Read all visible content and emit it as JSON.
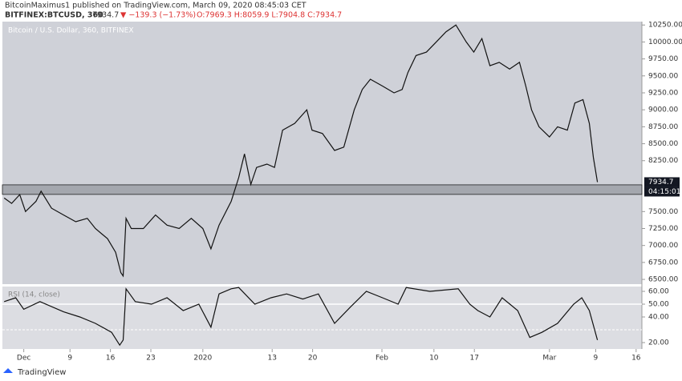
{
  "header": {
    "author_line": "BitcoinMaximus1 published on TradingView.com, March 09, 2020 08:45:03 CET",
    "symbol": "BITFINEX:BTCUSD, 360",
    "last": "7934.7",
    "change": "▼ −139.3 (−1.73%)",
    "ohlc": "O:7969.3 H:8059.9 L:7904.8 C:7934.7",
    "brand": "TradingView"
  },
  "chart_data": [
    {
      "type": "line",
      "subtitle": "Bitcoin / U.S. Dollar, 360, BITFINEX",
      "color": "#111111",
      "x": [
        -3.4,
        -2.1,
        -0.7,
        0.3,
        2.1,
        3.0,
        4.8,
        6.9,
        9.0,
        11.0,
        12.4,
        14.5,
        15.9,
        16.8,
        17.2,
        17.7,
        18.6,
        20.7,
        22.8,
        24.8,
        26.9,
        29.0,
        31.0,
        32.4,
        33.8,
        35.9,
        37.2,
        38.2,
        39.3,
        40.3,
        42.1,
        43.4,
        44.8,
        46.9,
        49.0,
        49.9,
        51.7,
        53.8,
        55.4,
        57.2,
        58.6,
        60.0,
        62.1,
        64.1,
        65.5,
        66.5,
        67.9,
        69.7,
        71.4,
        73.1,
        74.8,
        76.6,
        77.9,
        79.3,
        80.7,
        82.3,
        84.1,
        85.8,
        86.9,
        87.9,
        89.2,
        91.0,
        92.4,
        94.1,
        95.4,
        96.8,
        97.9,
        98.6,
        99.3
      ],
      "values": [
        7700,
        7620,
        7750,
        7500,
        7650,
        7800,
        7550,
        7450,
        7350,
        7400,
        7250,
        7100,
        6900,
        6600,
        6550,
        7400,
        7250,
        7250,
        7450,
        7300,
        7250,
        7400,
        7250,
        6950,
        7300,
        7650,
        8000,
        8350,
        7900,
        8150,
        8200,
        8150,
        8700,
        8800,
        9000,
        8700,
        8650,
        8400,
        8450,
        9000,
        9300,
        9450,
        9350,
        9250,
        9300,
        9550,
        9800,
        9850,
        10000,
        10150,
        10250,
        10000,
        9850,
        10050,
        9650,
        9700,
        9600,
        9700,
        9350,
        9000,
        8750,
        8600,
        8750,
        8700,
        9100,
        9150,
        8800,
        8300,
        7934.7
      ],
      "xlim": [
        -3.7,
        107
      ],
      "ylim": [
        6430,
        10300
      ],
      "xticks": [
        {
          "value": 0,
          "label": "Dec"
        },
        {
          "value": 8,
          "label": "9"
        },
        {
          "value": 15,
          "label": "16"
        },
        {
          "value": 22,
          "label": "23"
        },
        {
          "value": 31,
          "label": "2020"
        },
        {
          "value": 43,
          "label": "13"
        },
        {
          "value": 50,
          "label": "20"
        },
        {
          "value": 62,
          "label": "Feb"
        },
        {
          "value": 71,
          "label": "10"
        },
        {
          "value": 78,
          "label": "17"
        },
        {
          "value": 91,
          "label": "Mar"
        },
        {
          "value": 99,
          "label": "9"
        },
        {
          "value": 106,
          "label": "16"
        }
      ],
      "yticks": [
        {
          "value": 6500,
          "label": "6500.00"
        },
        {
          "value": 6750,
          "label": "6750.00"
        },
        {
          "value": 7000,
          "label": "7000.00"
        },
        {
          "value": 7250,
          "label": "7250.00"
        },
        {
          "value": 7500,
          "label": "7500.00"
        },
        {
          "value": 8250,
          "label": "8250.00"
        },
        {
          "value": 8500,
          "label": "8500.00"
        },
        {
          "value": 8750,
          "label": "8750.00"
        },
        {
          "value": 9000,
          "label": "9000.00"
        },
        {
          "value": 9250,
          "label": "9250.00"
        },
        {
          "value": 9500,
          "label": "9500.00"
        },
        {
          "value": 9750,
          "label": "9750.00"
        },
        {
          "value": 10000,
          "label": "10000.00"
        },
        {
          "value": 10250,
          "label": "10250.00"
        }
      ],
      "band": [
        7753,
        7894
      ],
      "band_color": "#a4a7ae",
      "last_price": {
        "value": 7934.7,
        "label": "7934.7"
      },
      "countdown": "04:15:01"
    },
    {
      "type": "line",
      "subtitle": "RSI (14, close)",
      "color": "#111111",
      "x": [
        -3.4,
        -1.4,
        0,
        2.8,
        6.9,
        9.7,
        12.4,
        15.2,
        16.6,
        17.2,
        17.7,
        19.3,
        22.1,
        24.8,
        27.6,
        30.3,
        32.4,
        33.8,
        35.9,
        37.2,
        40,
        42.8,
        45.5,
        48.3,
        51,
        53.8,
        56.6,
        59.3,
        62.1,
        64.8,
        66.2,
        70.3,
        75.2,
        77.2,
        78.6,
        80.7,
        82.8,
        85.5,
        87.6,
        89.7,
        92.4,
        95.2,
        96.6,
        97.9,
        99.3
      ],
      "values": [
        52,
        55,
        46,
        52,
        44,
        40,
        35,
        28,
        18,
        22,
        62,
        52,
        50,
        55,
        45,
        50,
        32,
        58,
        62,
        63,
        50,
        55,
        58,
        54,
        58,
        35,
        48,
        60,
        55,
        50,
        63,
        60,
        62,
        50,
        45,
        40,
        55,
        45,
        24,
        28,
        35,
        50,
        55,
        45,
        22
      ],
      "xlim": [
        -3.7,
        107
      ],
      "ylim": [
        15,
        63.75
      ],
      "yticks": [
        {
          "value": 20,
          "label": "20.00"
        },
        {
          "value": 40,
          "label": "40.00"
        },
        {
          "value": 50,
          "label": "50.00"
        },
        {
          "value": 60,
          "label": "60.00"
        }
      ],
      "ref_lines": [
        50,
        30
      ]
    }
  ]
}
